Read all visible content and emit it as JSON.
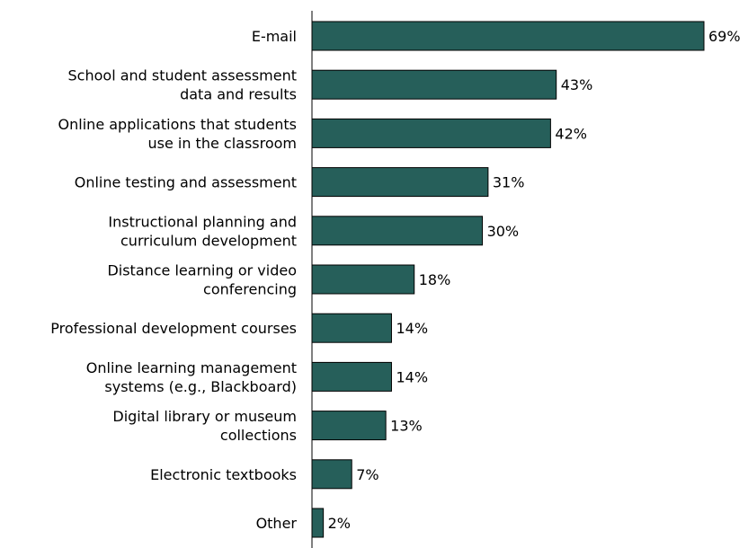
{
  "chart_data": {
    "type": "bar",
    "orientation": "horizontal",
    "categories": [
      [
        "E-mail"
      ],
      [
        "School and student assessment",
        "data and results"
      ],
      [
        "Online applications that students",
        "use in the classroom"
      ],
      [
        "Online testing and assessment"
      ],
      [
        "Instructional planning and",
        "curriculum development"
      ],
      [
        "Distance learning or video",
        "conferencing"
      ],
      [
        "Professional development courses"
      ],
      [
        "Online learning management",
        "systems (e.g., Blackboard)"
      ],
      [
        "Digital library or museum",
        "collections"
      ],
      [
        "Electronic textbooks"
      ],
      [
        "Other"
      ]
    ],
    "values": [
      69,
      43,
      42,
      31,
      30,
      18,
      14,
      14,
      13,
      7,
      2
    ],
    "value_labels": [
      "69%",
      "43%",
      "42%",
      "31%",
      "30%",
      "18%",
      "14%",
      "14%",
      "13%",
      "7%",
      "2%"
    ],
    "xlim": [
      0,
      100
    ],
    "grid": false,
    "colors": {
      "bar": "#265f5a",
      "axis": "#000000"
    }
  }
}
